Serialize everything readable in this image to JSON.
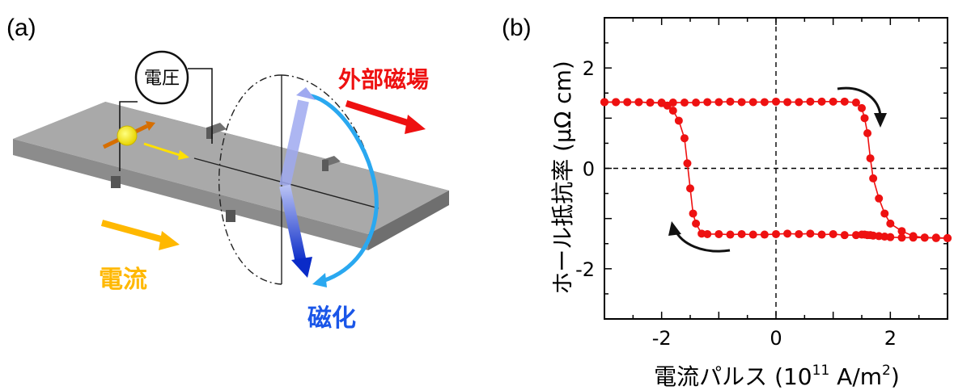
{
  "panel_a": {
    "label": "(a)",
    "voltage_label": "電圧",
    "external_field_label": "外部磁場",
    "current_label": "電流",
    "magnetization_label": "磁化",
    "colors": {
      "current": "#FFB800",
      "field": "#EE1111",
      "magnetization": "#1A56E8",
      "trajectory": "#2AA8F0",
      "bar": "#9E9E9E"
    }
  },
  "panel_b": {
    "label": "(b)",
    "ylabel": "ホール抵抗率 (μΩ cm)",
    "xlabel_main": "電流パルス (10",
    "xlabel_sup1": "11",
    "xlabel_mid": " A/m",
    "xlabel_sup2": "2",
    "xlabel_end": ")",
    "xticks": [
      "-2",
      "0",
      "2"
    ],
    "yticks": [
      "2",
      "0",
      "-2"
    ]
  },
  "chart_data": {
    "type": "scatter",
    "title": "",
    "xlabel": "電流パルス (10^11 A/m^2)",
    "ylabel": "ホール抵抗率 (μΩ cm)",
    "xlim": [
      -3,
      3
    ],
    "ylim": [
      -3,
      3
    ],
    "grid": false,
    "reference_lines": {
      "x": 0,
      "y": 0,
      "style": "dashed"
    },
    "color": "#EE1111",
    "series": [
      {
        "name": "",
        "x": [
          -3.0,
          -2.8,
          -2.6,
          -2.4,
          -2.2,
          -2.0,
          -1.9,
          -1.8,
          -1.7,
          -1.6,
          -1.55,
          -1.5,
          -1.45,
          -1.4,
          -1.3,
          -1.2,
          -1.0,
          -0.8,
          -0.6,
          -0.4,
          -0.2,
          0.0,
          0.2,
          0.4,
          0.6,
          0.8,
          1.0,
          1.2,
          1.4,
          1.5,
          1.55,
          1.6,
          1.65,
          1.7,
          1.8,
          1.9,
          2.0,
          2.2,
          2.4,
          2.6,
          2.8,
          3.0
        ],
        "y": [
          1.32,
          1.32,
          1.32,
          1.32,
          1.31,
          1.3,
          1.25,
          1.15,
          0.95,
          0.6,
          0.1,
          -0.4,
          -0.9,
          -1.1,
          -1.3,
          -1.31,
          -1.31,
          -1.32,
          -1.31,
          -1.32,
          -1.32,
          -1.31,
          -1.3,
          -1.31,
          -1.3,
          -1.32,
          -1.31,
          -1.33,
          -1.33,
          -1.32,
          -1.32,
          -1.33,
          -1.33,
          -1.34,
          -1.35,
          -1.36,
          -1.37,
          -1.38,
          -1.38,
          -1.38,
          -1.39,
          -1.39
        ]
      },
      {
        "name": "",
        "x": [
          3.0,
          2.8,
          2.6,
          2.4,
          2.2,
          2.0,
          1.9,
          1.8,
          1.7,
          1.65,
          1.6,
          1.55,
          1.5,
          1.4,
          1.2,
          1.0,
          0.8,
          0.6,
          0.4,
          0.2,
          0.0,
          -0.2,
          -0.4,
          -0.6,
          -0.8,
          -1.0,
          -1.2,
          -1.4,
          -1.6,
          -1.8,
          -2.0,
          -2.2,
          -2.4,
          -2.6,
          -2.8,
          -3.0
        ],
        "y": [
          -1.39,
          -1.38,
          -1.38,
          -1.35,
          -1.25,
          -1.1,
          -0.9,
          -0.6,
          -0.2,
          0.2,
          0.7,
          1.0,
          1.2,
          1.31,
          1.33,
          1.33,
          1.33,
          1.33,
          1.32,
          1.32,
          1.33,
          1.32,
          1.32,
          1.32,
          1.33,
          1.32,
          1.32,
          1.31,
          1.31,
          1.31,
          1.31,
          1.31,
          1.32,
          1.32,
          1.32,
          1.32
        ]
      }
    ]
  }
}
